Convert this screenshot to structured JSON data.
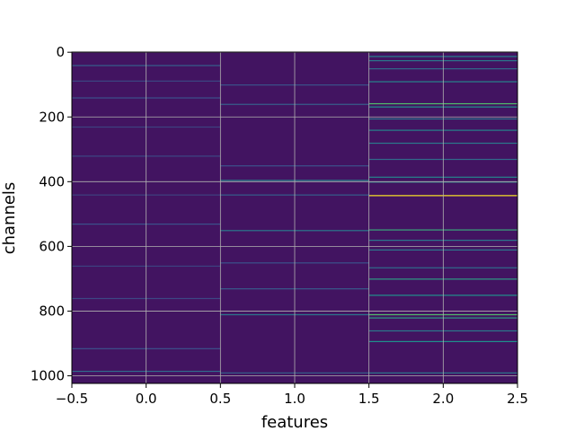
{
  "chart_data": {
    "type": "heatmap",
    "title": "",
    "xlabel": "features",
    "ylabel": "channels",
    "xlim": [
      -0.5,
      2.5
    ],
    "ylim": [
      1023.5,
      -0.5
    ],
    "x_ticks": [
      -0.5,
      0.0,
      0.5,
      1.0,
      1.5,
      2.0,
      2.5
    ],
    "x_tick_labels": [
      "−0.5",
      "0.0",
      "0.5",
      "1.0",
      "1.5",
      "2.0",
      "2.5"
    ],
    "y_ticks": [
      0,
      200,
      400,
      600,
      800,
      1000
    ],
    "y_tick_labels": [
      "0",
      "200",
      "400",
      "600",
      "800",
      "1000"
    ],
    "grid": true,
    "colormap": "viridis",
    "n_features": 3,
    "n_channels": 1024,
    "background_value": 0.06,
    "columns": [
      {
        "feature": 0,
        "bright_channels": [
          {
            "channel": 40,
            "value": 0.3
          },
          {
            "channel": 88,
            "value": 0.22
          },
          {
            "channel": 140,
            "value": 0.25
          },
          {
            "channel": 230,
            "value": 0.2
          },
          {
            "channel": 320,
            "value": 0.22
          },
          {
            "channel": 440,
            "value": 0.2
          },
          {
            "channel": 530,
            "value": 0.25
          },
          {
            "channel": 660,
            "value": 0.2
          },
          {
            "channel": 760,
            "value": 0.22
          },
          {
            "channel": 915,
            "value": 0.25
          },
          {
            "channel": 985,
            "value": 0.35
          }
        ]
      },
      {
        "feature": 1,
        "bright_channels": [
          {
            "channel": 100,
            "value": 0.25
          },
          {
            "channel": 160,
            "value": 0.3
          },
          {
            "channel": 350,
            "value": 0.25
          },
          {
            "channel": 395,
            "value": 0.45
          },
          {
            "channel": 440,
            "value": 0.3
          },
          {
            "channel": 550,
            "value": 0.4
          },
          {
            "channel": 650,
            "value": 0.25
          },
          {
            "channel": 730,
            "value": 0.28
          },
          {
            "channel": 810,
            "value": 0.4
          },
          {
            "channel": 990,
            "value": 0.3
          }
        ]
      },
      {
        "feature": 2,
        "bright_channels": [
          {
            "channel": 12,
            "value": 0.45
          },
          {
            "channel": 25,
            "value": 0.4
          },
          {
            "channel": 50,
            "value": 0.35
          },
          {
            "channel": 90,
            "value": 0.45
          },
          {
            "channel": 158,
            "value": 0.7
          },
          {
            "channel": 168,
            "value": 0.5
          },
          {
            "channel": 205,
            "value": 0.4
          },
          {
            "channel": 240,
            "value": 0.45
          },
          {
            "channel": 280,
            "value": 0.4
          },
          {
            "channel": 330,
            "value": 0.35
          },
          {
            "channel": 385,
            "value": 0.45
          },
          {
            "channel": 400,
            "value": 0.5
          },
          {
            "channel": 442,
            "value": 1.0
          },
          {
            "channel": 548,
            "value": 0.6
          },
          {
            "channel": 580,
            "value": 0.4
          },
          {
            "channel": 610,
            "value": 0.4
          },
          {
            "channel": 665,
            "value": 0.35
          },
          {
            "channel": 700,
            "value": 0.55
          },
          {
            "channel": 750,
            "value": 0.5
          },
          {
            "channel": 810,
            "value": 0.7
          },
          {
            "channel": 820,
            "value": 0.55
          },
          {
            "channel": 860,
            "value": 0.4
          },
          {
            "channel": 893,
            "value": 0.5
          },
          {
            "channel": 990,
            "value": 0.4
          }
        ]
      }
    ]
  }
}
